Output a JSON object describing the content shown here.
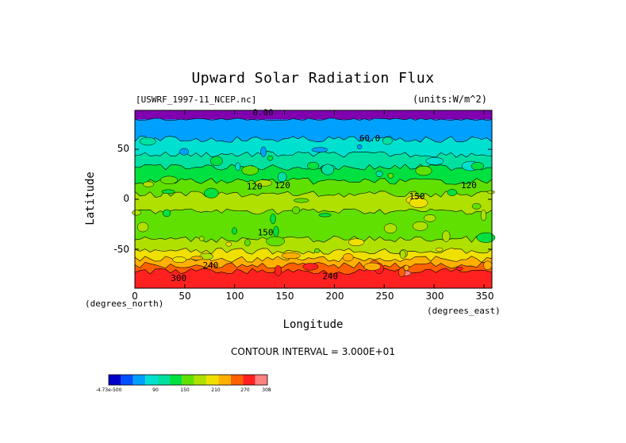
{
  "chart_data": {
    "type": "heatmap",
    "title": "Upward Solar Radiation Flux",
    "file_label": "[USWRF_1997-11_NCEP.nc]",
    "units_label": "(units:W/m^2)",
    "xlabel": "Longitude",
    "ylabel": "Latitude",
    "x_unit_left": "(degrees_north)",
    "x_unit_right": "(degrees_east)",
    "xlim": [
      0,
      358
    ],
    "ylim": [
      -89,
      89
    ],
    "x_ticks": [
      "0",
      "50",
      "100",
      "150",
      "200",
      "250",
      "300",
      "350"
    ],
    "y_ticks": [
      "50",
      "0",
      "-50"
    ],
    "contour_interval": "CONTOUR INTERVAL = 3.000E+01",
    "contour_labels": [
      "0.00",
      "60.0",
      "120",
      "120",
      "120",
      "150",
      "150",
      "240",
      "240",
      "300"
    ],
    "colorbar_labels": [
      "-4.73e-500",
      "90",
      "150",
      "210",
      "270",
      "308"
    ],
    "colorbar_colors": [
      "#0000c8",
      "#0050ff",
      "#00a0ff",
      "#00e0d0",
      "#00e0a0",
      "#00e040",
      "#60e000",
      "#b0e000",
      "#f0e000",
      "#ffb000",
      "#ff6000",
      "#ff2020",
      "#ff8080"
    ],
    "bands": [
      {
        "lat_top": 89,
        "lat_bottom": 80,
        "value": 0
      },
      {
        "lat_top": 80,
        "lat_bottom": 60,
        "value": 30
      },
      {
        "lat_top": 60,
        "lat_bottom": 45,
        "value": 60
      },
      {
        "lat_top": 45,
        "lat_bottom": 32,
        "value": 90
      },
      {
        "lat_top": 32,
        "lat_bottom": 18,
        "value": 120
      },
      {
        "lat_top": 18,
        "lat_bottom": 5,
        "value": 150
      },
      {
        "lat_top": 5,
        "lat_bottom": -12,
        "value": 180
      },
      {
        "lat_top": -12,
        "lat_bottom": -40,
        "value": 150
      },
      {
        "lat_top": -40,
        "lat_bottom": -52,
        "value": 180
      },
      {
        "lat_top": -52,
        "lat_bottom": -60,
        "value": 210
      },
      {
        "lat_top": -60,
        "lat_bottom": -66,
        "value": 240
      },
      {
        "lat_top": -66,
        "lat_bottom": -72,
        "value": 270
      },
      {
        "lat_top": -72,
        "lat_bottom": -89,
        "value": 300
      }
    ]
  }
}
